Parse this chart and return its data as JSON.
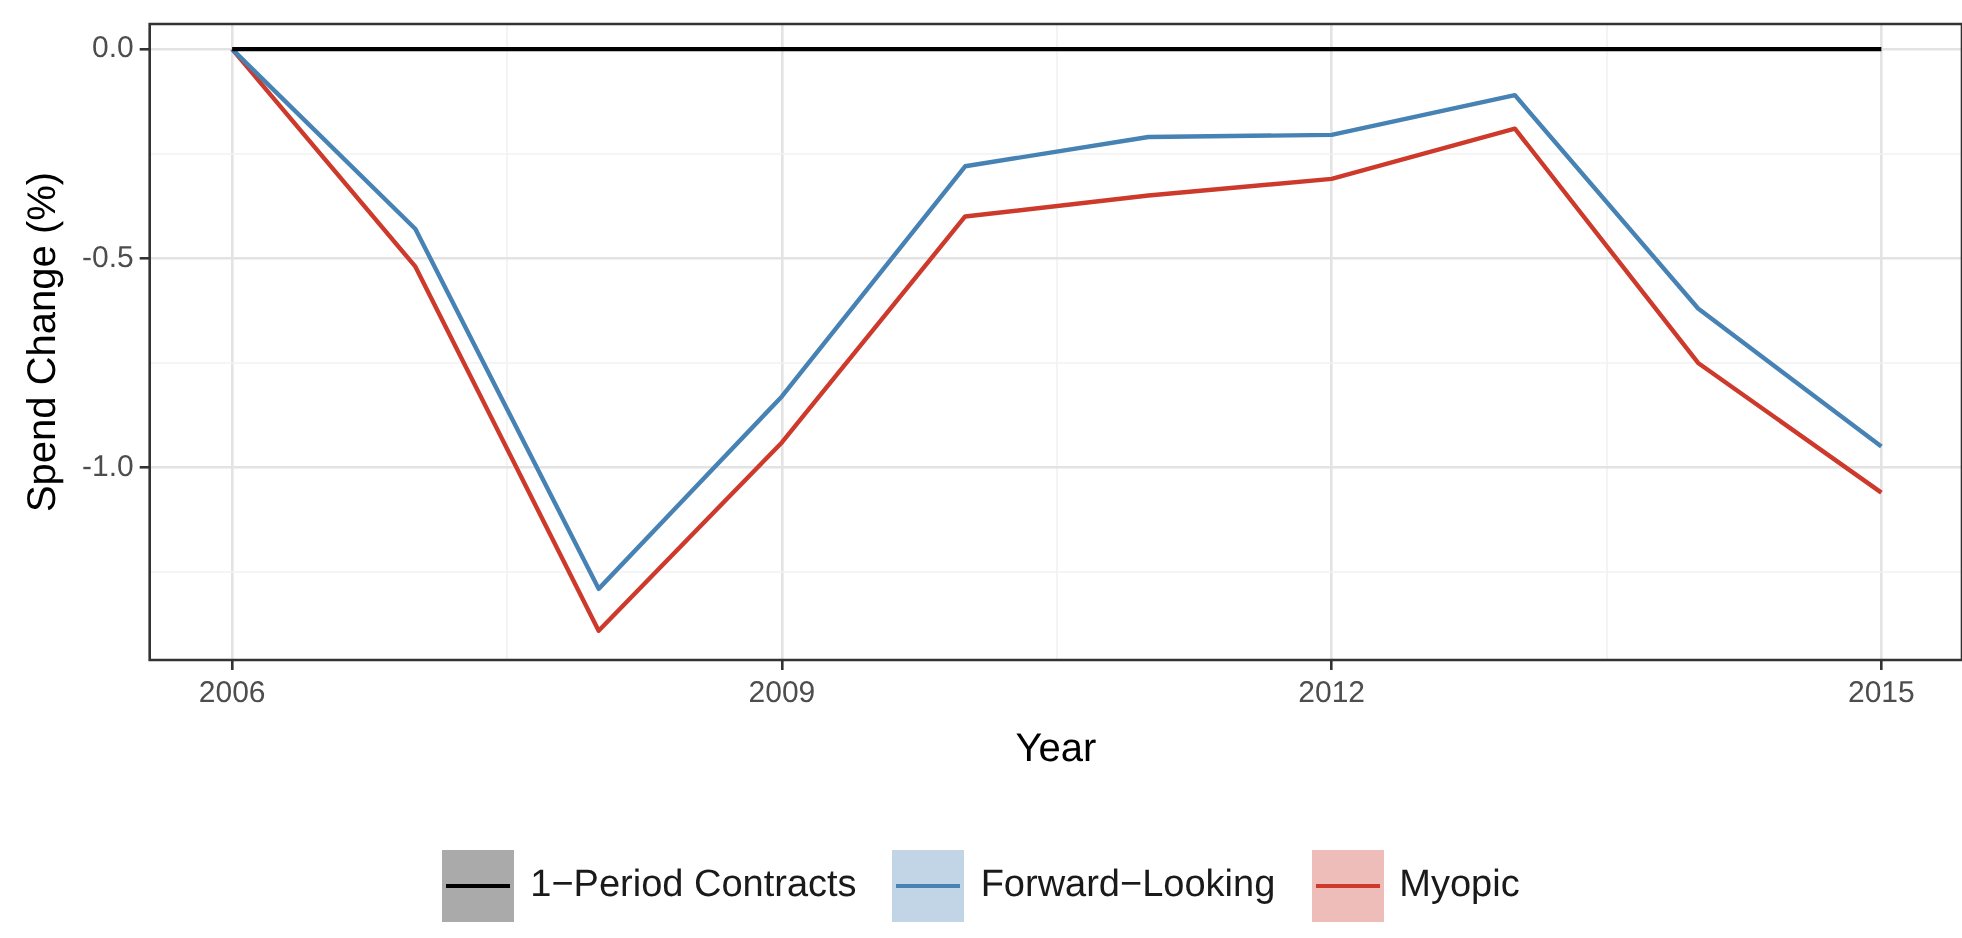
{
  "chart_data": {
    "type": "line",
    "xlabel": "Year",
    "ylabel": "Spend Change (%)",
    "x": [
      2006,
      2007,
      2008,
      2009,
      2010,
      2011,
      2012,
      2013,
      2014,
      2015
    ],
    "series": [
      {
        "name": "1−Period Contracts",
        "color": "#000000",
        "values": [
          0,
          0,
          0,
          0,
          0,
          0,
          0,
          0,
          0,
          0
        ]
      },
      {
        "name": "Forward−Looking",
        "color": "#4682b4",
        "values": [
          0,
          -0.43,
          -1.29,
          -0.83,
          -0.28,
          -0.21,
          -0.205,
          -0.11,
          -0.62,
          -0.95
        ]
      },
      {
        "name": "Myopic",
        "color": "#cd3a2c",
        "values": [
          0,
          -0.52,
          -1.39,
          -0.94,
          -0.4,
          -0.35,
          -0.31,
          -0.19,
          -0.75,
          -1.06
        ]
      }
    ],
    "xlim": [
      2005.55,
      2015.44
    ],
    "xticks": [
      2006,
      {
        "value": 2007.5,
        "label": null
      },
      2009,
      {
        "value": 2010.5,
        "label": null
      },
      2012,
      {
        "value": 2013.5,
        "label": null
      },
      2015
    ],
    "ylim": [
      -1.46,
      0.06
    ],
    "yticks": [
      {
        "value": -1.25,
        "label": null
      },
      {
        "value": -1,
        "label": "-1.0"
      },
      {
        "value": -0.75,
        "label": null
      },
      {
        "value": -0.5,
        "label": "-0.5"
      },
      {
        "value": -0.25,
        "label": null
      },
      {
        "value": 0,
        "label": "0.0"
      }
    ],
    "grid": true,
    "legend": "bottom",
    "marker": "none",
    "line_style": "solid"
  }
}
